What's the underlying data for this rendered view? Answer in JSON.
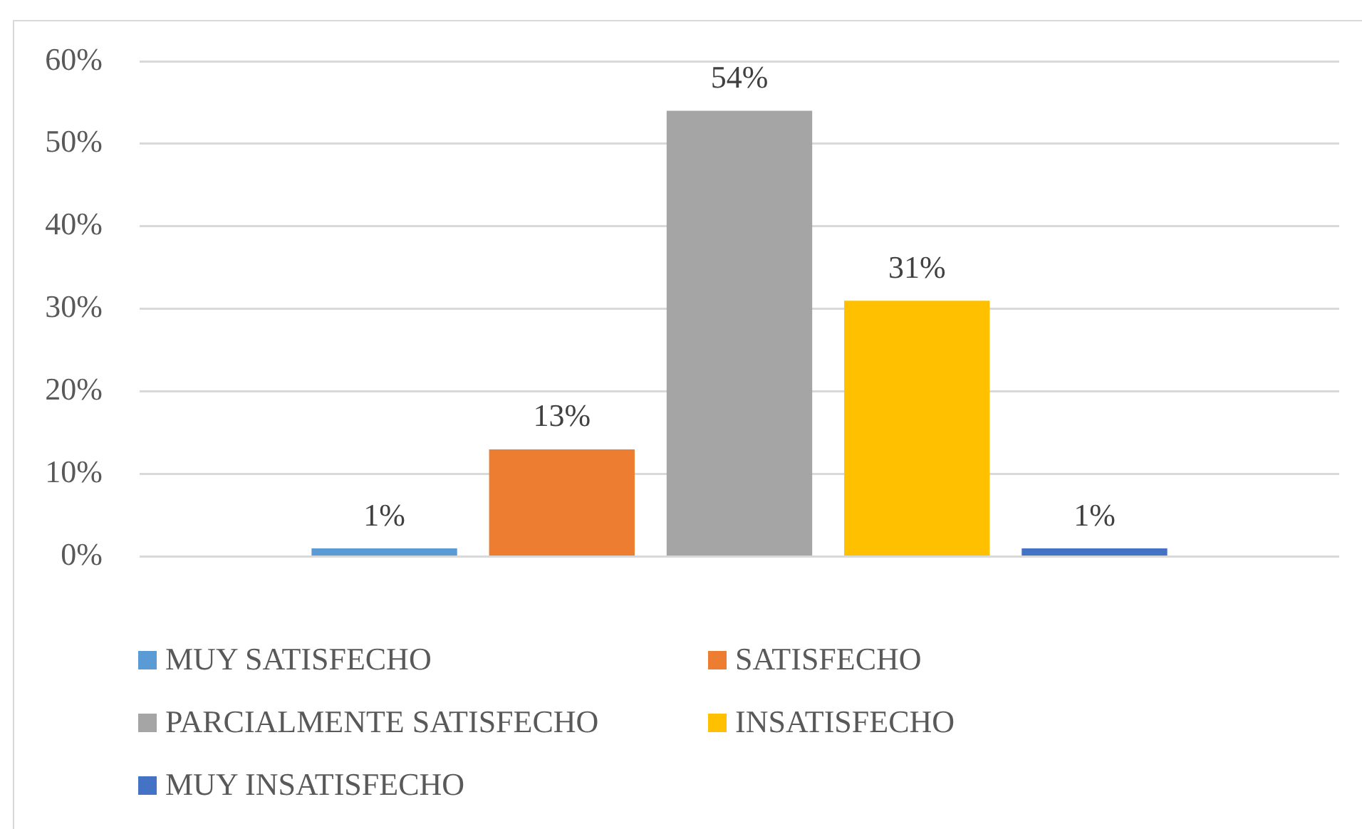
{
  "chart_data": {
    "type": "bar",
    "categories": [
      null
    ],
    "series": [
      {
        "name": "MUY SATISFECHO",
        "color": "#5b9bd5",
        "values": [
          1
        ],
        "value_labels": [
          "1%"
        ]
      },
      {
        "name": "SATISFECHO",
        "color": "#ed7d31",
        "values": [
          13
        ],
        "value_labels": [
          "13%"
        ]
      },
      {
        "name": "PARCIALMENTE SATISFECHO",
        "color": "#a5a5a5",
        "values": [
          54
        ],
        "value_labels": [
          "54%"
        ]
      },
      {
        "name": "INSATISFECHO",
        "color": "#ffc000",
        "values": [
          31
        ],
        "value_labels": [
          "31%"
        ]
      },
      {
        "name": "MUY INSATISFECHO",
        "color": "#4472c4",
        "values": [
          1
        ],
        "value_labels": [
          "1%"
        ]
      }
    ],
    "ylim": [
      0,
      60
    ],
    "yticks": [
      {
        "value": 0,
        "label": "0%"
      },
      {
        "value": 10,
        "label": "10%"
      },
      {
        "value": 20,
        "label": "20%"
      },
      {
        "value": 30,
        "label": "30%"
      },
      {
        "value": 40,
        "label": "40%"
      },
      {
        "value": 50,
        "label": "50%"
      },
      {
        "value": 60,
        "label": "60%"
      }
    ],
    "grid": "y",
    "legend": "bottom"
  }
}
